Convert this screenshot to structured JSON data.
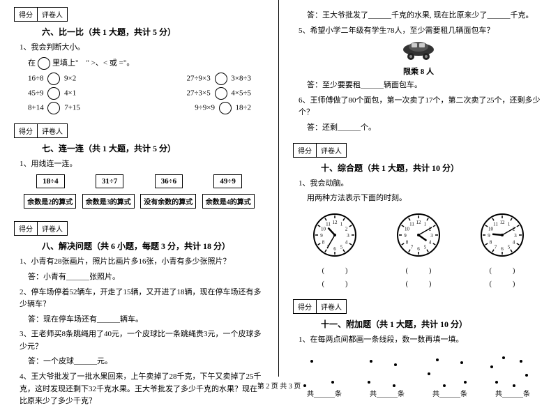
{
  "scorebox": {
    "score": "得分",
    "reviewer": "评卷人"
  },
  "sec6": {
    "title": "六、比一比（共 1 大题，共计 5 分）",
    "q1": "1、我会判断大小。",
    "instr": "在",
    "instr2": "里填上\"　\" >、< 或 =\"。",
    "rows": [
      [
        "16÷8",
        "9×2",
        "27÷9×3",
        "3×8÷3"
      ],
      [
        "45÷9",
        "4×1",
        "27÷3×5",
        "4×5÷5"
      ],
      [
        "8+14",
        "7+15",
        "9÷9×9",
        "18÷2"
      ]
    ]
  },
  "sec7": {
    "title": "七、连一连（共 1 大题，共计 5 分）",
    "q1": "1、用线连一连。",
    "items": [
      "18÷4",
      "31÷7",
      "36÷6",
      "49÷9"
    ],
    "rems": [
      "余数是2的算式",
      "余数是3的算式",
      "没有余数的算式",
      "余数是4的算式"
    ]
  },
  "sec8": {
    "title": "八、解决问题（共 6 小题，每题 3 分，共计 18 分）",
    "q1": "1、小青有28张画片，照片比画片多16张，小青有多少张照片？",
    "a1": "答：小青有______张照片。",
    "q2": "2、停车场停着52辆车，开走了15辆，又开进了18辆，现在停车场还有多少辆车？",
    "a2": "答：现在停车场还有______辆车。",
    "q3": "3、王老师买8条跳绳用了40元，一个皮球比一条跳绳贵3元，一个皮球多少元？",
    "a3": "答：一个皮球______元。",
    "q4": "4、王大爷批发了一批水果回来，上午卖掉了28千克，下午又卖掉了25千克，这时发现还剩下32千克水果。王大爷批发了多少千克的水果？现在比原来少了多少千克？"
  },
  "right": {
    "a4": "答：王大爷批发了______千克的水果, 现在比原来少了______千克。",
    "q5": "5、希望小学二年级有学生78人，至少需要租几辆面包车？",
    "cap": "限乘 8 人",
    "a5": "答：至少要要租______辆面包车。",
    "q6": "6、王师傅做了80个面包，第一次卖了17个，第二次卖了25个，还剩多少个？",
    "a6": "答：还剩______个。"
  },
  "sec10": {
    "title": "十、综合题（共 1 大题，共计 10 分）",
    "q1": "1、我会动脑。",
    "q1b": "用两种方法表示下面的时刻。",
    "clocks": [
      {
        "h": 10,
        "m": 35
      },
      {
        "h": 4,
        "m": 10
      },
      {
        "h": 9,
        "m": 10
      }
    ],
    "lbl": "(　　　)",
    "lbl2": "(　　　)"
  },
  "sec11": {
    "title": "十一、附加题（共 1 大题，共计 10 分）",
    "q1": "1、在每两点间都画一条线段，数一数再填一填。",
    "groups": [
      [
        [
          20,
          10
        ],
        [
          50,
          40
        ],
        [
          10,
          45
        ]
      ],
      [
        [
          15,
          10
        ],
        [
          50,
          15
        ],
        [
          48,
          45
        ],
        [
          12,
          40
        ]
      ],
      [
        [
          20,
          8
        ],
        [
          55,
          12
        ],
        [
          60,
          40
        ],
        [
          30,
          45
        ],
        [
          8,
          28
        ]
      ],
      [
        [
          25,
          5
        ],
        [
          50,
          10
        ],
        [
          58,
          30
        ],
        [
          40,
          45
        ],
        [
          15,
          40
        ],
        [
          8,
          18
        ]
      ]
    ],
    "lbl": "共______条"
  },
  "footer": "第 2 页  共 3 页"
}
